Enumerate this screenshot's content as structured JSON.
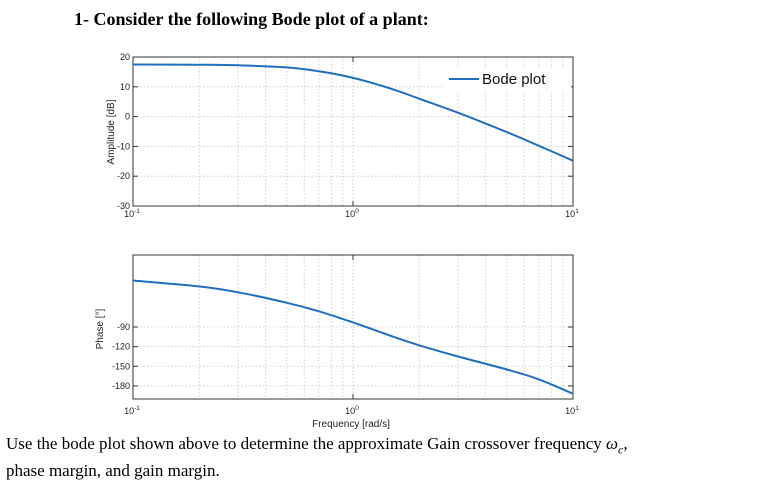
{
  "heading": "1- Consider the following Bode plot of a plant:",
  "question": {
    "line1_before": "Use the bode plot shown above to determine the approximate Gain crossover frequency ",
    "omega": "ω",
    "omega_sub": "c",
    "line1_after": ",",
    "line2": "phase margin, and gain margin."
  },
  "series_color": "#1f6fbf",
  "chart_data": [
    {
      "type": "line",
      "title": "",
      "xlabel": "",
      "ylabel": "Amplitude [dB]",
      "x_scale": "log",
      "xlim": [
        0.1,
        10
      ],
      "ylim": [
        -30,
        20
      ],
      "x_ticks": [
        0.1,
        1,
        10
      ],
      "x_tick_labels": [
        [
          "10",
          "-1"
        ],
        [
          "10",
          "0"
        ],
        [
          "10",
          "1"
        ]
      ],
      "y_ticks": [
        20,
        10,
        0,
        -10,
        -20,
        -30
      ],
      "y_tick_labels": [
        "20",
        "10",
        "0",
        "-10",
        "-20",
        "-30"
      ],
      "grid": true,
      "legend": {
        "entries": [
          "Bode plot"
        ],
        "placement": "top-right"
      },
      "series": [
        {
          "name": "Bode plot",
          "x": [
            0.1,
            0.2,
            0.3,
            0.5,
            0.7,
            1,
            1.5,
            2,
            3,
            5,
            7,
            10
          ],
          "y": [
            17.5,
            17.4,
            17.2,
            16.5,
            15.2,
            13,
            9.3,
            6,
            1.3,
            -5.2,
            -9.8,
            -14.8
          ]
        }
      ]
    },
    {
      "type": "line",
      "title": "",
      "xlabel": "Frequency [rad/s]",
      "ylabel": "Phase [°]",
      "x_scale": "log",
      "xlim": [
        0.1,
        10
      ],
      "ylim": [
        -200,
        20
      ],
      "x_ticks": [
        0.1,
        1,
        10
      ],
      "x_tick_labels": [
        [
          "10",
          "-1"
        ],
        [
          "10",
          "0"
        ],
        [
          "10",
          "1"
        ]
      ],
      "y_ticks": [
        -90,
        -120,
        -150,
        -180
      ],
      "y_tick_labels": [
        "-90",
        "-120",
        "-150",
        "-180"
      ],
      "grid": true,
      "series": [
        {
          "name": "",
          "x": [
            0.1,
            0.2,
            0.3,
            0.5,
            0.7,
            1,
            1.5,
            2,
            3,
            5,
            7,
            10
          ],
          "y": [
            -19,
            -28,
            -37,
            -53,
            -66,
            -83,
            -104,
            -118,
            -135,
            -155,
            -170,
            -192
          ]
        }
      ]
    }
  ]
}
